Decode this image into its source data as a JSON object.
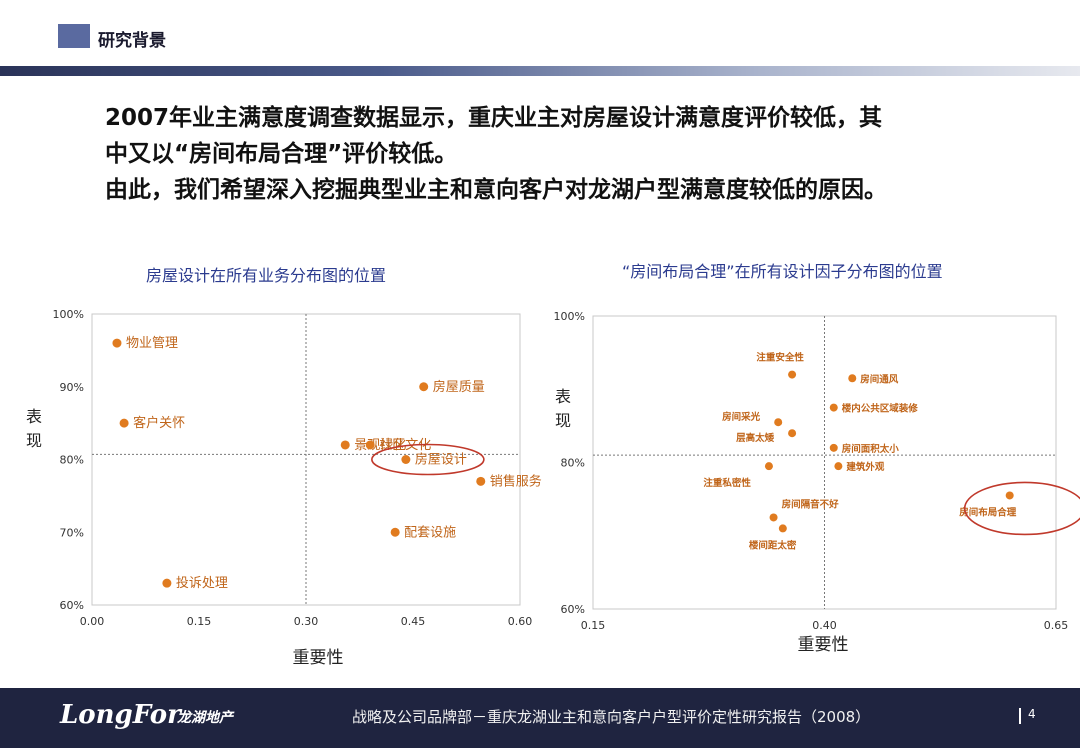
{
  "header": {
    "title": "研究背景"
  },
  "statement": {
    "line1": "2007年业主满意度调查数据显示，重庆业主对房屋设计满意度评价较低，其",
    "line2": "中又以“房间布局合理”评价较低。",
    "line3": "由此，我们希望深入挖掘典型业主和意向客户对龙湖户型满意度较低的原因。"
  },
  "footer": {
    "logo": "LongFor",
    "logo_cn": "龙湖地产",
    "text": "战略及公司品牌部－重庆龙湖业主和意向客户户型评价定性研究报告（2008）",
    "page": "4"
  },
  "colors": {
    "accent": "#e07b1f",
    "grid": "#a0a0a0",
    "title": "#2b3b8f",
    "circle": "#c0392b"
  },
  "chart_data": [
    {
      "type": "scatter",
      "title": "房屋设计在所有业务分布图的位置",
      "xlabel": "重要性",
      "ylabel": "表现",
      "xlim": [
        0,
        0.6
      ],
      "ylim": [
        60,
        100
      ],
      "xticks": [
        "0.00",
        "0.15",
        "0.30",
        "0.45",
        "0.60"
      ],
      "yticks": [
        "60%",
        "70%",
        "80%",
        "90%",
        "100%"
      ],
      "ref_x": 0.3,
      "ref_y": 80.7,
      "highlight": "房屋设计",
      "points": [
        {
          "label": "物业管理",
          "x": 0.035,
          "y": 96
        },
        {
          "label": "客户关怀",
          "x": 0.045,
          "y": 85
        },
        {
          "label": "房屋质量",
          "x": 0.465,
          "y": 90
        },
        {
          "label": "景观绿化",
          "x": 0.355,
          "y": 82
        },
        {
          "label": "社区文化",
          "x": 0.39,
          "y": 82
        },
        {
          "label": "房屋设计",
          "x": 0.44,
          "y": 80
        },
        {
          "label": "销售服务",
          "x": 0.545,
          "y": 77
        },
        {
          "label": "配套设施",
          "x": 0.425,
          "y": 70
        },
        {
          "label": "投诉处理",
          "x": 0.105,
          "y": 63
        }
      ]
    },
    {
      "type": "scatter",
      "title": "“房间布局合理”在所有设计因子分布图的位置",
      "xlabel": "重要性",
      "ylabel": "表现",
      "xlim": [
        0.15,
        0.65
      ],
      "ylim": [
        60,
        100
      ],
      "xticks": [
        "0.15",
        "0.40",
        "0.65"
      ],
      "yticks": [
        "60%",
        "80%",
        "100%"
      ],
      "ref_x": 0.4,
      "ref_y": 81,
      "highlight": "房间布局合理",
      "points": [
        {
          "label": "注重安全性",
          "x": 0.365,
          "y": 92
        },
        {
          "label": "房间通风",
          "x": 0.43,
          "y": 91.5
        },
        {
          "label": "房间采光",
          "x": 0.35,
          "y": 85.5
        },
        {
          "label": "楼内公共区域装修",
          "x": 0.41,
          "y": 87.5
        },
        {
          "label": "层高太矮",
          "x": 0.365,
          "y": 84
        },
        {
          "label": "房间面积太小",
          "x": 0.41,
          "y": 82
        },
        {
          "label": "建筑外观",
          "x": 0.415,
          "y": 79.5
        },
        {
          "label": "注重私密性",
          "x": 0.34,
          "y": 79.5
        },
        {
          "label": "房间布局合理",
          "x": 0.6,
          "y": 75.5
        },
        {
          "label": "房间隔音不好",
          "x": 0.345,
          "y": 72.5
        },
        {
          "label": "楼间距太密",
          "x": 0.355,
          "y": 71
        }
      ]
    }
  ]
}
